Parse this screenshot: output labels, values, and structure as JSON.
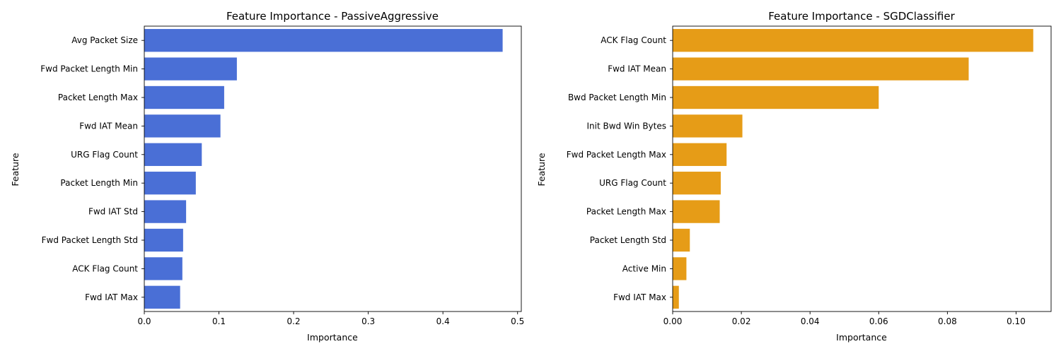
{
  "chart_data": [
    {
      "type": "bar",
      "orientation": "horizontal",
      "title": "Feature Importance - PassiveAggressive",
      "xlabel": "Importance",
      "ylabel": "Feature",
      "color": "#4a6fd6",
      "xlim": [
        0,
        0.505
      ],
      "xticks": [
        0.0,
        0.1,
        0.2,
        0.3,
        0.4,
        0.5
      ],
      "xtick_labels": [
        "0.0",
        "0.1",
        "0.2",
        "0.3",
        "0.4",
        "0.5"
      ],
      "categories": [
        "Avg Packet Size",
        "Fwd Packet Length Min",
        "Packet Length Max",
        "Fwd IAT Mean",
        "URG Flag Count",
        "Packet Length Min",
        "Fwd IAT Std",
        "Fwd Packet Length Std",
        "ACK Flag Count",
        "Fwd IAT Max"
      ],
      "values": [
        0.48,
        0.124,
        0.107,
        0.102,
        0.077,
        0.069,
        0.056,
        0.052,
        0.051,
        0.048
      ]
    },
    {
      "type": "bar",
      "orientation": "horizontal",
      "title": "Feature Importance - SGDClassifier",
      "xlabel": "Importance",
      "ylabel": "Feature",
      "color": "#e69c17",
      "xlim": [
        0,
        0.1102
      ],
      "xticks": [
        0.0,
        0.02,
        0.04,
        0.06,
        0.08,
        0.1
      ],
      "xtick_labels": [
        "0.00",
        "0.02",
        "0.04",
        "0.06",
        "0.08",
        "0.10"
      ],
      "categories": [
        "ACK Flag Count",
        "Fwd IAT Mean",
        "Bwd Packet Length Min",
        "Init Bwd Win Bytes",
        "Fwd Packet Length Max",
        "URG Flag Count",
        "Packet Length Max",
        "Packet Length Std",
        "Active Min",
        "Fwd IAT Max"
      ],
      "values": [
        0.105,
        0.0862,
        0.06,
        0.0203,
        0.0157,
        0.014,
        0.0137,
        0.005,
        0.004,
        0.0018
      ]
    }
  ]
}
